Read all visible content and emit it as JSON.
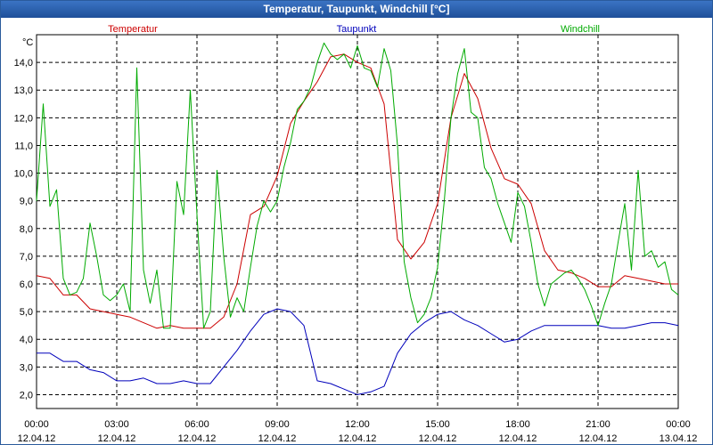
{
  "window_title": "Temperatur, Taupunkt, Windchill [°C]",
  "chart_data": {
    "type": "line",
    "title": "Temperatur, Taupunkt, Windchill [°C]",
    "ylabel": "°C",
    "ylim": [
      1.5,
      15.0
    ],
    "yticks": [
      "2,0",
      "3,0",
      "4,0",
      "5,0",
      "6,0",
      "7,0",
      "8,0",
      "9,0",
      "10,0",
      "11,0",
      "12,0",
      "13,0",
      "14,0"
    ],
    "xlim": [
      0,
      24
    ],
    "xticks": [
      {
        "hour": 0,
        "time": "00:00",
        "date": "12.04.12"
      },
      {
        "hour": 3,
        "time": "03:00",
        "date": "12.04.12"
      },
      {
        "hour": 6,
        "time": "06:00",
        "date": "12.04.12"
      },
      {
        "hour": 9,
        "time": "09:00",
        "date": "12.04.12"
      },
      {
        "hour": 12,
        "time": "12:00",
        "date": "12.04.12"
      },
      {
        "hour": 15,
        "time": "15:00",
        "date": "12.04.12"
      },
      {
        "hour": 18,
        "time": "18:00",
        "date": "12.04.12"
      },
      {
        "hour": 21,
        "time": "21:00",
        "date": "12.04.12"
      },
      {
        "hour": 24,
        "time": "00:00",
        "date": "13.04.12"
      }
    ],
    "grid": true,
    "series": [
      {
        "name": "Temperatur",
        "color": "#cc0000",
        "x": [
          0,
          0.5,
          1,
          1.5,
          2,
          2.5,
          3,
          3.5,
          4,
          4.5,
          5,
          5.5,
          6,
          6.5,
          7,
          7.5,
          8,
          8.5,
          9,
          9.5,
          10,
          10.5,
          11,
          11.5,
          12,
          12.5,
          13,
          13.5,
          14,
          14.5,
          15,
          15.5,
          16,
          16.5,
          17,
          17.5,
          18,
          18.5,
          19,
          19.5,
          20,
          20.5,
          21,
          21.5,
          22,
          22.5,
          23,
          23.5,
          24
        ],
        "values": [
          6.3,
          6.2,
          5.6,
          5.6,
          5.1,
          5.0,
          4.9,
          4.8,
          4.6,
          4.4,
          4.5,
          4.4,
          4.4,
          4.4,
          4.8,
          6.0,
          8.5,
          8.8,
          9.9,
          11.8,
          12.6,
          13.3,
          14.2,
          14.3,
          14.0,
          13.8,
          12.5,
          7.6,
          6.9,
          7.5,
          8.9,
          12.0,
          13.6,
          12.7,
          10.9,
          9.8,
          9.6,
          8.9,
          7.2,
          6.5,
          6.4,
          6.2,
          5.9,
          5.9,
          6.3,
          6.2,
          6.1,
          6.0,
          6.0
        ]
      },
      {
        "name": "Taupunkt",
        "color": "#0000bb",
        "x": [
          0,
          0.5,
          1,
          1.5,
          2,
          2.5,
          3,
          3.5,
          4,
          4.5,
          5,
          5.5,
          6,
          6.5,
          7,
          7.5,
          8,
          8.5,
          9,
          9.5,
          10,
          10.5,
          11,
          11.5,
          12,
          12.5,
          13,
          13.5,
          14,
          14.5,
          15,
          15.5,
          16,
          16.5,
          17,
          17.5,
          18,
          18.5,
          19,
          19.5,
          20,
          20.5,
          21,
          21.5,
          22,
          22.5,
          23,
          23.5,
          24
        ],
        "values": [
          3.5,
          3.5,
          3.2,
          3.2,
          2.9,
          2.8,
          2.5,
          2.5,
          2.6,
          2.4,
          2.4,
          2.5,
          2.4,
          2.4,
          3.0,
          3.6,
          4.3,
          4.9,
          5.1,
          5.0,
          4.5,
          2.5,
          2.4,
          2.2,
          2.0,
          2.1,
          2.3,
          3.5,
          4.2,
          4.6,
          4.9,
          5.0,
          4.7,
          4.5,
          4.2,
          3.9,
          4.0,
          4.3,
          4.5,
          4.5,
          4.5,
          4.5,
          4.5,
          4.4,
          4.4,
          4.5,
          4.6,
          4.6,
          4.5
        ]
      },
      {
        "name": "Windchill",
        "color": "#00aa00",
        "x": [
          0,
          0.25,
          0.5,
          0.75,
          1,
          1.25,
          1.5,
          1.75,
          2,
          2.25,
          2.5,
          2.75,
          3,
          3.25,
          3.5,
          3.75,
          4,
          4.25,
          4.5,
          4.75,
          5,
          5.25,
          5.5,
          5.75,
          6,
          6.25,
          6.5,
          6.75,
          7,
          7.25,
          7.5,
          7.75,
          8,
          8.25,
          8.5,
          8.75,
          9,
          9.25,
          9.5,
          9.75,
          10,
          10.25,
          10.5,
          10.75,
          11,
          11.25,
          11.5,
          11.75,
          12,
          12.25,
          12.5,
          12.75,
          13,
          13.25,
          13.5,
          13.75,
          14,
          14.25,
          14.5,
          14.75,
          15,
          15.25,
          15.5,
          15.75,
          16,
          16.25,
          16.5,
          16.75,
          17,
          17.25,
          17.5,
          17.75,
          18,
          18.25,
          18.5,
          18.75,
          19,
          19.25,
          19.5,
          19.75,
          20,
          20.25,
          20.5,
          20.75,
          21,
          21.25,
          21.5,
          21.75,
          22,
          22.25,
          22.5,
          22.75,
          23,
          23.25,
          23.5,
          23.75,
          24
        ],
        "values": [
          9.0,
          12.5,
          8.8,
          9.4,
          6.2,
          5.6,
          5.7,
          6.2,
          8.2,
          7.0,
          5.6,
          5.4,
          5.6,
          6.0,
          5.0,
          13.8,
          6.5,
          5.3,
          6.5,
          4.4,
          4.4,
          9.7,
          8.5,
          13.0,
          8.5,
          4.4,
          5.0,
          10.1,
          7.0,
          4.8,
          5.5,
          5.0,
          6.6,
          8.1,
          9.0,
          8.6,
          9.0,
          10.2,
          11.1,
          12.3,
          12.6,
          13.1,
          14.0,
          14.7,
          14.3,
          14.1,
          14.3,
          13.8,
          14.6,
          13.8,
          13.7,
          13.1,
          14.5,
          13.7,
          11.0,
          6.8,
          5.5,
          4.6,
          4.9,
          5.5,
          6.6,
          9.0,
          12.0,
          13.6,
          14.5,
          12.2,
          12.0,
          10.2,
          9.8,
          8.9,
          8.2,
          7.5,
          9.3,
          8.8,
          7.5,
          6.0,
          5.2,
          6.0,
          6.2,
          6.4,
          6.5,
          6.2,
          5.8,
          5.2,
          4.5,
          5.3,
          6.0,
          7.5,
          8.9,
          6.5,
          10.1,
          7.0,
          7.2,
          6.6,
          6.8,
          5.8,
          5.6
        ]
      }
    ]
  }
}
